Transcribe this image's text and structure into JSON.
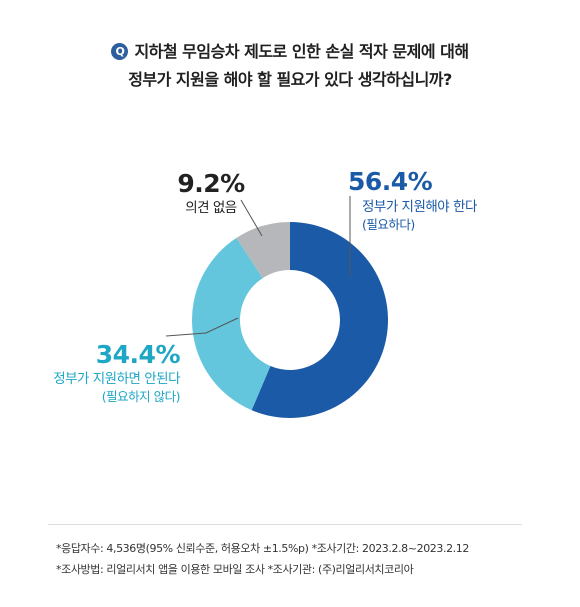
{
  "question": {
    "badge": "Q",
    "line1": "지하철 무임승차 제도로 인한 손실 적자 문제에 대해",
    "line2": "정부가 지원을 해야 할 필요가 있다 생각하십니까?"
  },
  "chart_data": {
    "type": "pie",
    "donut": true,
    "title": "지하철 무임승차 제도로 인한 손실 적자 문제에 대해 정부가 지원을 해야 할 필요가 있다 생각하십니까?",
    "slices": [
      {
        "label": "56.4%",
        "name": "정부가 지원해야 한다",
        "sub": "(필요하다)",
        "value": 56.4,
        "color": "#1b5aa6",
        "text_color": "#1b5aa6"
      },
      {
        "label": "34.4%",
        "name": "정부가 지원하면 안된다",
        "sub": "(필요하지 않다)",
        "value": 34.4,
        "color": "#64c6dc",
        "text_color": "#1ea6c5"
      },
      {
        "label": "9.2%",
        "name": "의견 없음",
        "sub": "",
        "value": 9.2,
        "color": "#b5b7ba",
        "text_color": "#222222"
      }
    ]
  },
  "notes": {
    "line1": "*응답자수: 4,536명(95% 신뢰수준, 허용오차 ±1.5%p)  *조사기간: 2023.2.8~2023.2.12",
    "line2": "*조사방법: 리얼리서치 앱을 이용한 모바일 조사  *조사기관: (주)리얼리서치코리아"
  }
}
